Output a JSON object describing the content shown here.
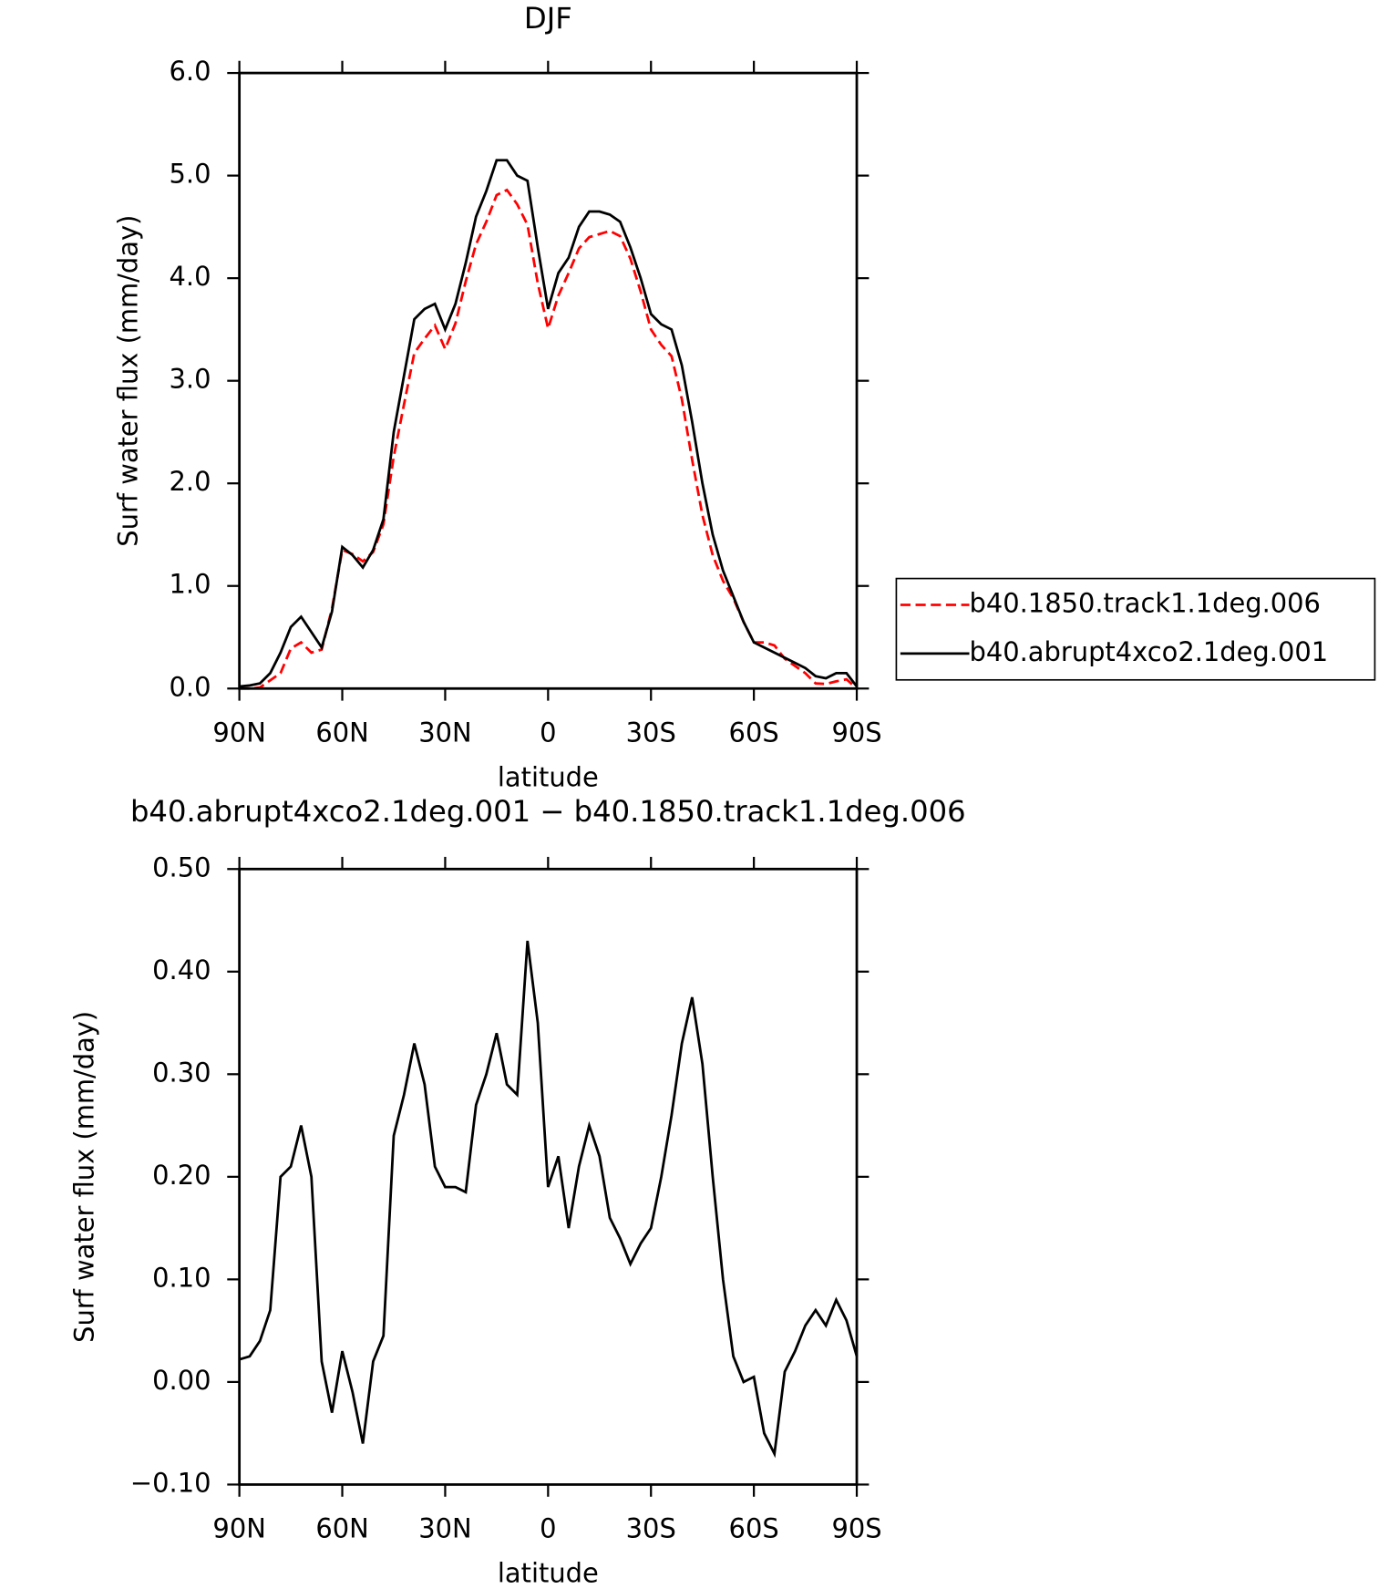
{
  "chart_data": [
    {
      "type": "line",
      "title": "DJF",
      "x_label": "latitude",
      "y_label": "Surf water flux (mm/day)",
      "x": [
        90,
        87,
        84,
        81,
        78,
        75,
        72,
        69,
        66,
        63,
        60,
        57,
        54,
        51,
        48,
        45,
        42,
        39,
        36,
        33,
        30,
        27,
        24,
        21,
        18,
        15,
        12,
        9,
        6,
        3,
        0,
        -3,
        -6,
        -9,
        -12,
        -15,
        -18,
        -21,
        -24,
        -27,
        -30,
        -33,
        -36,
        -39,
        -42,
        -45,
        -48,
        -51,
        -54,
        -57,
        -60,
        -63,
        -66,
        -69,
        -72,
        -75,
        -78,
        -81,
        -84,
        -87,
        -90
      ],
      "series": [
        {
          "name": "b40.1850.track1.1deg.006",
          "color": "#ff0000",
          "dashed": true,
          "values": [
            0.0,
            0.0,
            0.01,
            0.08,
            0.15,
            0.39,
            0.45,
            0.35,
            0.38,
            0.78,
            1.35,
            1.31,
            1.24,
            1.33,
            1.6,
            2.26,
            2.77,
            3.27,
            3.41,
            3.54,
            3.31,
            3.56,
            3.97,
            4.33,
            4.55,
            4.81,
            4.86,
            4.72,
            4.52,
            3.95,
            3.51,
            3.83,
            4.05,
            4.29,
            4.4,
            4.43,
            4.46,
            4.41,
            4.19,
            3.87,
            3.5,
            3.35,
            3.24,
            2.82,
            2.23,
            1.69,
            1.3,
            1.05,
            0.88,
            0.65,
            0.45,
            0.45,
            0.42,
            0.29,
            0.22,
            0.15,
            0.05,
            0.045,
            0.07,
            0.09,
            0.0
          ]
        },
        {
          "name": "b40.abrupt4xco2.1deg.001",
          "color": "#000000",
          "dashed": false,
          "values": [
            0.02,
            0.03,
            0.05,
            0.15,
            0.35,
            0.6,
            0.7,
            0.55,
            0.4,
            0.75,
            1.38,
            1.3,
            1.18,
            1.35,
            1.65,
            2.5,
            3.05,
            3.6,
            3.7,
            3.75,
            3.5,
            3.75,
            4.15,
            4.6,
            4.85,
            5.15,
            5.15,
            5.0,
            4.95,
            4.3,
            3.7,
            4.05,
            4.2,
            4.5,
            4.65,
            4.65,
            4.62,
            4.55,
            4.3,
            4.0,
            3.65,
            3.55,
            3.5,
            3.15,
            2.6,
            2.0,
            1.5,
            1.15,
            0.9,
            0.65,
            0.45,
            0.4,
            0.35,
            0.3,
            0.25,
            0.2,
            0.12,
            0.1,
            0.15,
            0.15,
            0.02
          ]
        }
      ],
      "xlim": [
        90,
        -90
      ],
      "xticks": [
        {
          "value": 90,
          "label": "90N"
        },
        {
          "value": 60,
          "label": "60N"
        },
        {
          "value": 30,
          "label": "30N"
        },
        0,
        {
          "value": -30,
          "label": "30S"
        },
        {
          "value": -60,
          "label": "60S"
        },
        {
          "value": -90,
          "label": "90S"
        }
      ],
      "ylim": [
        0,
        6
      ],
      "yticks": [
        {
          "value": 0,
          "label": "0.0"
        },
        {
          "value": 1,
          "label": "1.0"
        },
        {
          "value": 2,
          "label": "2.0"
        },
        {
          "value": 3,
          "label": "3.0"
        },
        {
          "value": 4,
          "label": "4.0"
        },
        {
          "value": 5,
          "label": "5.0"
        },
        {
          "value": 6,
          "label": "6.0"
        }
      ],
      "legend": "right"
    },
    {
      "type": "line",
      "title": "b40.abrupt4xco2.1deg.001 − b40.1850.track1.1deg.006",
      "x_label": "latitude",
      "y_label": "Surf water flux (mm/day)",
      "x": [
        90,
        87,
        84,
        81,
        78,
        75,
        72,
        69,
        66,
        63,
        60,
        57,
        54,
        51,
        48,
        45,
        42,
        39,
        36,
        33,
        30,
        27,
        24,
        21,
        18,
        15,
        12,
        9,
        6,
        3,
        0,
        -3,
        -6,
        -9,
        -12,
        -15,
        -18,
        -21,
        -24,
        -27,
        -30,
        -33,
        -36,
        -39,
        -42,
        -45,
        -48,
        -51,
        -54,
        -57,
        -60,
        -63,
        -66,
        -69,
        -72,
        -75,
        -78,
        -81,
        -84,
        -87,
        -90
      ],
      "series": [
        {
          "color": "#000000",
          "dashed": false,
          "values": [
            0.022,
            0.025,
            0.04,
            0.07,
            0.2,
            0.21,
            0.25,
            0.2,
            0.02,
            -0.03,
            0.03,
            -0.01,
            -0.06,
            0.02,
            0.045,
            0.24,
            0.28,
            0.33,
            0.29,
            0.21,
            0.19,
            0.19,
            0.185,
            0.27,
            0.3,
            0.34,
            0.29,
            0.28,
            0.43,
            0.35,
            0.19,
            0.22,
            0.15,
            0.21,
            0.25,
            0.22,
            0.16,
            0.14,
            0.115,
            0.135,
            0.15,
            0.2,
            0.26,
            0.33,
            0.375,
            0.31,
            0.2,
            0.1,
            0.025,
            0.0,
            0.005,
            -0.05,
            -0.07,
            0.01,
            0.03,
            0.055,
            0.07,
            0.055,
            0.08,
            0.06,
            0.025
          ]
        }
      ],
      "xlim": [
        90,
        -90
      ],
      "xticks": [
        {
          "value": 90,
          "label": "90N"
        },
        {
          "value": 60,
          "label": "60N"
        },
        {
          "value": 30,
          "label": "30N"
        },
        0,
        {
          "value": -30,
          "label": "30S"
        },
        {
          "value": -60,
          "label": "60S"
        },
        {
          "value": -90,
          "label": "90S"
        }
      ],
      "ylim": [
        -0.1,
        0.5
      ],
      "yticks": [
        {
          "value": -0.1,
          "label": "−0.10"
        },
        {
          "value": 0,
          "label": "0.00"
        },
        {
          "value": 0.1,
          "label": "0.10"
        },
        {
          "value": 0.2,
          "label": "0.20"
        },
        {
          "value": 0.3,
          "label": "0.30"
        },
        {
          "value": 0.4,
          "label": "0.40"
        },
        {
          "value": 0.5,
          "label": "0.50"
        }
      ]
    }
  ]
}
